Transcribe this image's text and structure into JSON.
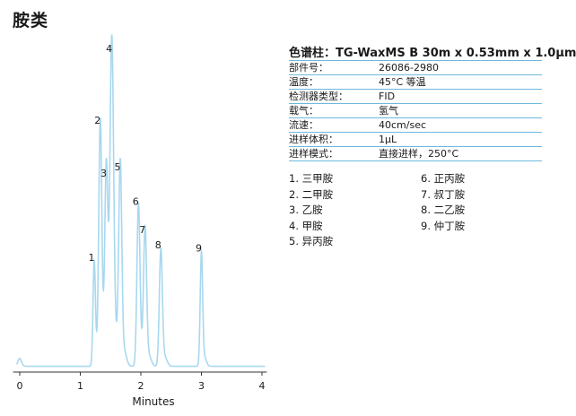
{
  "title": "胺类",
  "column": {
    "title": "色谱柱：TG-WaxMS B 30m x 0.53mm x 1.0µm",
    "specs": [
      {
        "label": "部件号：",
        "value": "26086-2980"
      },
      {
        "label": "温度：",
        "value": "45°C 等温"
      },
      {
        "label": "检测器类型：",
        "value": "FID"
      },
      {
        "label": "载气：",
        "value": "氢气"
      },
      {
        "label": "流速：",
        "value": "40cm/sec"
      },
      {
        "label": "进样体积：",
        "value": "1µL"
      },
      {
        "label": "进样模式：",
        "value": "直接进样，250°C"
      }
    ]
  },
  "peak_list": {
    "left": [
      "1. 三甲胺",
      "2. 二甲胺",
      "3. 乙胺",
      "4. 甲胺",
      "5. 异丙胺"
    ],
    "right": [
      "6. 正丙胺",
      "7. 叔丁胺",
      "8. 二乙胺",
      "9. 仲丁胺"
    ]
  },
  "colors": {
    "trace": "#a8d8ef",
    "rule": "#6cb9dc",
    "axis": "#333333"
  },
  "chart_data": {
    "type": "line",
    "xlabel": "Minutes",
    "ylabel": "",
    "x_ticks": [
      "0",
      "1",
      "2",
      "3",
      "4"
    ],
    "xlim": [
      -0.05,
      4.05
    ],
    "ylim": [
      0,
      100
    ],
    "baseline": 1.0,
    "grid": false,
    "peaks": [
      {
        "label": "1",
        "x": 1.23,
        "height": 33,
        "width": 0.02
      },
      {
        "label": "2",
        "x": 1.33,
        "height": 77,
        "width": 0.025
      },
      {
        "label": "3",
        "x": 1.43,
        "height": 60,
        "width": 0.025
      },
      {
        "label": "4",
        "x": 1.52,
        "height": 100,
        "width": 0.03
      },
      {
        "label": "5",
        "x": 1.66,
        "height": 62,
        "width": 0.025
      },
      {
        "label": "6",
        "x": 1.96,
        "height": 51,
        "width": 0.025
      },
      {
        "label": "7",
        "x": 2.07,
        "height": 42,
        "width": 0.025
      },
      {
        "label": "8",
        "x": 2.33,
        "height": 37,
        "width": 0.025
      },
      {
        "label": "9",
        "x": 3.0,
        "height": 36,
        "width": 0.02
      }
    ]
  }
}
